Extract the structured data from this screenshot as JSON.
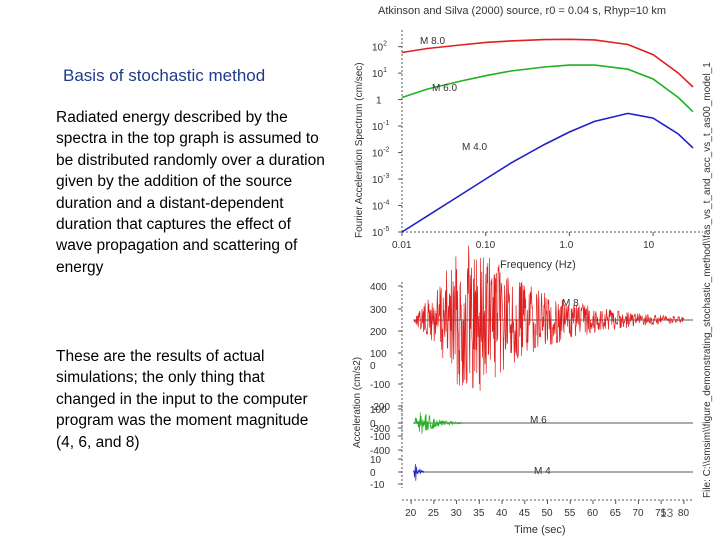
{
  "slide": {
    "title": "Basis of stochastic method",
    "paragraph1": "Radiated energy described by the spectra in the top graph is assumed to be distributed randomly over a duration given by the addition of the source duration and a distant-dependent duration that captures the effect of wave propagation and scattering of energy",
    "paragraph2": "These are the results of actual simulations; the only thing that changed in the input to the computer program was the moment magnitude (4, 6, and 8)",
    "page_number": "13"
  },
  "file_label": "File: C:\\\\smsim\\\\figure_demonstrating_stochastic_method\\\\fas_vs_t_and_acc_vs_t_as00_model_1",
  "chart_data": [
    {
      "type": "line",
      "title": "Atkinson and Silva (2000) source, r0 = 0.04 s, Rhyp=10 km",
      "xlabel": "Frequency (Hz)",
      "ylabel": "Fourier Acceleration Spectrum (cm/sec)",
      "xscale": "log",
      "yscale": "log",
      "xlim": [
        0.01,
        30
      ],
      "ylim": [
        1e-05,
        300
      ],
      "x_tick_labels": [
        "0.01",
        "0.10",
        "1.0",
        "10"
      ],
      "y_tick_labels": [
        "10^2",
        "10^1",
        "1",
        "10^-1",
        "10^-2",
        "10^-3",
        "10^-4",
        "10^-5"
      ],
      "series": [
        {
          "name": "M 8.0",
          "color": "#e02020",
          "x": [
            0.01,
            0.02,
            0.05,
            0.1,
            0.2,
            0.5,
            1,
            2,
            5,
            10,
            20,
            30
          ],
          "y": [
            60,
            85,
            115,
            145,
            165,
            185,
            190,
            180,
            120,
            50,
            10,
            3
          ]
        },
        {
          "name": "M 6.0",
          "color": "#20b020",
          "x": [
            0.01,
            0.02,
            0.05,
            0.1,
            0.2,
            0.5,
            1,
            2,
            5,
            10,
            20,
            30
          ],
          "y": [
            1.2,
            2.5,
            5,
            8,
            12,
            17,
            20,
            20,
            14,
            6,
            1.2,
            0.35
          ]
        },
        {
          "name": "M 4.0",
          "color": "#2020c8",
          "x": [
            0.01,
            0.02,
            0.05,
            0.1,
            0.2,
            0.5,
            1,
            2,
            5,
            10,
            20,
            30
          ],
          "y": [
            1e-05,
            4e-05,
            0.00025,
            0.001,
            0.004,
            0.02,
            0.06,
            0.15,
            0.3,
            0.2,
            0.05,
            0.015
          ]
        }
      ]
    },
    {
      "type": "line",
      "title": "",
      "xlabel": "Time (sec)",
      "ylabel": "Acceleration (cm/s2)",
      "xlim": [
        18,
        82
      ],
      "x_tick_labels": [
        "20",
        "25",
        "30",
        "35",
        "40",
        "45",
        "50",
        "55",
        "60",
        "65",
        "70",
        "75",
        "80"
      ],
      "series": [
        {
          "name": "M 8",
          "color": "#e02020",
          "ylim": [
            -500,
            500
          ],
          "y_tick_labels": [
            "400",
            "300",
            "200",
            "100",
            "0",
            "-100",
            "-200",
            "-300",
            "-400"
          ],
          "start": 20.5,
          "peak_time": 33,
          "peak_amp": 380,
          "end": 80
        },
        {
          "name": "M 6",
          "color": "#20b020",
          "ylim": [
            -150,
            150
          ],
          "y_tick_labels": [
            "100",
            "0",
            "-100"
          ],
          "start": 20.5,
          "peak_time": 22,
          "peak_amp": 100,
          "end": 32
        },
        {
          "name": "M 4",
          "color": "#2020c8",
          "ylim": [
            -15,
            15
          ],
          "y_tick_labels": [
            "10",
            "0",
            "-10"
          ],
          "start": 20.5,
          "peak_time": 21,
          "peak_amp": 12,
          "end": 23
        }
      ]
    }
  ]
}
